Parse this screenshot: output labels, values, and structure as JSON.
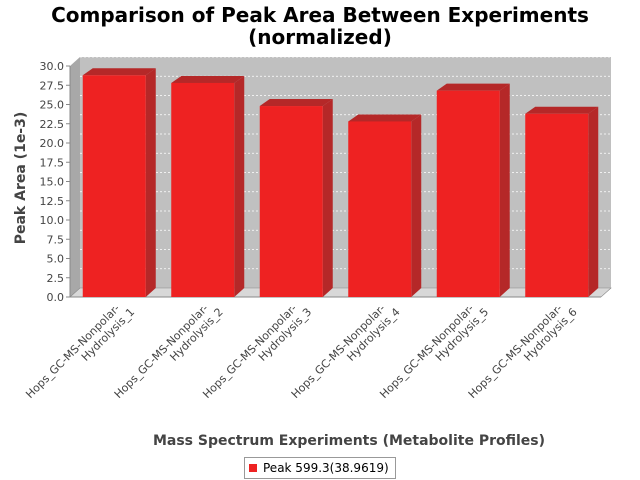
{
  "chart_data": {
    "type": "bar",
    "title": "Comparison of Peak Area Between Experiments",
    "subtitle": "(normalized)",
    "xlabel": "Mass Spectrum Experiments (Metabolite Profiles)",
    "ylabel": "Peak Area (1e-3)",
    "categories": [
      [
        "Hops_GC-MS-Nonpolar-",
        "Hydrolysis_1"
      ],
      [
        "Hops_GC-MS-Nonpolar-",
        "Hydrolysis_2"
      ],
      [
        "Hops_GC-MS-Nonpolar-",
        "Hydrolysis_3"
      ],
      [
        "Hops_GC-MS-Nonpolar-",
        "Hydrolysis_4"
      ],
      [
        "Hops_GC-MS-Nonpolar-",
        "Hydrolysis_5"
      ],
      [
        "Hops_GC-MS-Nonpolar-",
        "Hydrolysis_6"
      ]
    ],
    "series": [
      {
        "name": "Peak 599.3(38.9619)",
        "values": [
          28.8,
          27.8,
          24.8,
          22.8,
          26.8,
          23.8
        ],
        "color": "#ee2222"
      }
    ],
    "ylim": [
      0,
      30
    ],
    "yticks": [
      "0.0",
      "2.5",
      "5.0",
      "7.5",
      "10.0",
      "12.5",
      "15.0",
      "17.5",
      "20.0",
      "22.5",
      "25.0",
      "27.5",
      "30.0"
    ],
    "grid": true,
    "legend_position": "bottom",
    "colors": {
      "plot_background": "#c0c0c0",
      "plot_side": "#a8a8a8",
      "bar": "#ee2222",
      "bar_dark": "#b52828",
      "gridline": "#ffffff"
    }
  }
}
